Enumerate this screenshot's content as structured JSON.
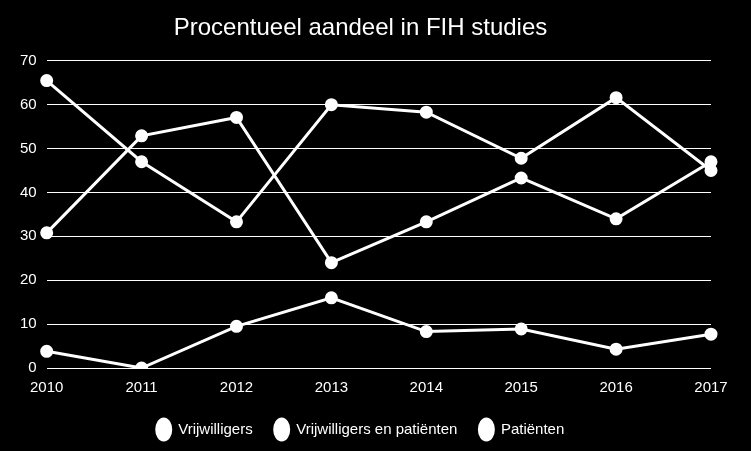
{
  "chart_data": {
    "type": "line",
    "title": "Procentueel aandeel in FIH studies",
    "categories": [
      "2010",
      "2011",
      "2012",
      "2013",
      "2014",
      "2015",
      "2016",
      "2017"
    ],
    "series": [
      {
        "name": "Vrijwilligers",
        "color": "#ffffff",
        "marker": "circle",
        "values": [
          65.5,
          47,
          33.3,
          60,
          58.3,
          47.8,
          61.6,
          45
        ]
      },
      {
        "name": "Vrijwilligers en patiënten",
        "color": "#ffffff",
        "marker": "circle",
        "values": [
          3.8,
          0,
          9.5,
          16,
          8.3,
          8.9,
          4.3,
          7.7
        ]
      },
      {
        "name": "Patiënten",
        "color": "#ffffff",
        "marker": "circle",
        "values": [
          30.8,
          52.9,
          57.1,
          24,
          33.3,
          43.3,
          34,
          47
        ]
      }
    ],
    "ylim": [
      0,
      70
    ],
    "yticks": [
      0,
      10,
      20,
      30,
      40,
      50,
      60,
      70
    ],
    "grid": true,
    "legend": "bottom"
  }
}
